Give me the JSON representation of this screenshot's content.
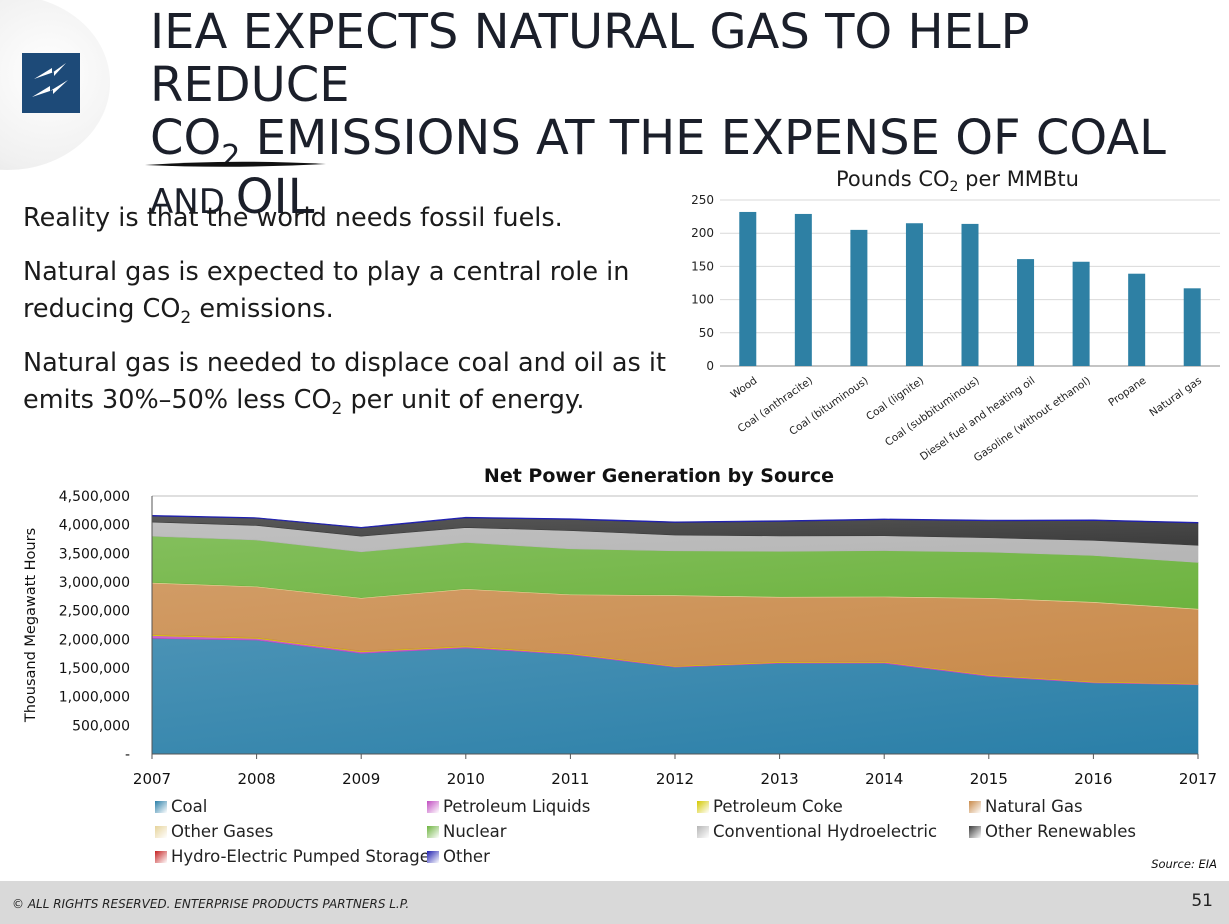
{
  "title": {
    "line1": "IEA EXPECTS NATURAL GAS TO HELP REDUCE",
    "line2_a": "CO",
    "line2_sub": "2",
    "line2_b": " EMISSIONS AT THE EXPENSE OF COAL",
    "line3_small": "AND ",
    "line3_big": "OIL"
  },
  "bullets": {
    "b1": "Reality is that the world needs fossil fuels.",
    "b2_a": "Natural gas is expected to play a central role in reducing CO",
    "b2_sub": "2",
    "b2_b": " emissions.",
    "b3_a": "Natural gas is needed to displace coal and oil as it emits 30%–50% less CO",
    "b3_sub": "2",
    "b3_b": " per unit of energy."
  },
  "footer": {
    "copyright": "© ALL RIGHTS RESERVED. ENTERPRISE PRODUCTS PARTNERS L.P.",
    "page": "51",
    "source": "Source:  EIA"
  },
  "chart_data": [
    {
      "type": "bar",
      "title_a": "Pounds CO",
      "title_sub": "2",
      "title_b": " per MMBtu",
      "categories": [
        "Wood",
        "Coal (anthracite)",
        "Coal (bituminous)",
        "Coal (lignite)",
        "Coal (subbituminous)",
        "Diesel fuel and heating oil",
        "Gasoline (without ethanol)",
        "Propane",
        "Natural gas"
      ],
      "values": [
        232,
        229,
        205,
        215,
        214,
        161,
        157,
        139,
        117
      ],
      "ylim": [
        0,
        250
      ],
      "yticks": [
        "0",
        "50",
        "100",
        "150",
        "200",
        "250"
      ],
      "color": "#2e80a4",
      "grid": true
    },
    {
      "type": "area",
      "stacked": true,
      "title": "Net Power Generation by Source",
      "ylabel": "Thousand Megawatt Hours",
      "x": [
        "2007",
        "2008",
        "2009",
        "2010",
        "2011",
        "2012",
        "2013",
        "2014",
        "2015",
        "2016",
        "2017"
      ],
      "ylim": [
        0,
        4500000
      ],
      "yticks": [
        "-",
        "500,000",
        "1,000,000",
        "1,500,000",
        "2,000,000",
        "2,500,000",
        "3,000,000",
        "3,500,000",
        "4,000,000",
        "4,500,000"
      ],
      "series": [
        {
          "name": "Coal",
          "color": "#2a7fa8",
          "values": [
            2016000,
            1986000,
            1756000,
            1847000,
            1733000,
            1514000,
            1581000,
            1582000,
            1352000,
            1239000,
            1206000
          ]
        },
        {
          "name": "Petroleum Liquids",
          "color": "#c04cc0",
          "values": [
            49000,
            31000,
            26000,
            23000,
            16000,
            13000,
            13000,
            18000,
            17000,
            14000,
            12000
          ]
        },
        {
          "name": "Petroleum Coke",
          "color": "#d4c800",
          "values": [
            17000,
            15000,
            13000,
            14000,
            14000,
            10000,
            14000,
            12000,
            11000,
            11000,
            9000
          ]
        },
        {
          "name": "Natural Gas",
          "color": "#c98a4a",
          "values": [
            897000,
            883000,
            921000,
            988000,
            1014000,
            1225000,
            1125000,
            1127000,
            1333000,
            1379000,
            1296000
          ]
        },
        {
          "name": "Other Gases",
          "color": "#e6d39a",
          "values": [
            13000,
            11000,
            11000,
            11000,
            11000,
            12000,
            13000,
            12000,
            13000,
            13000,
            13000
          ]
        },
        {
          "name": "Nuclear",
          "color": "#6db33f",
          "values": [
            806000,
            806000,
            799000,
            807000,
            790000,
            769000,
            789000,
            797000,
            797000,
            806000,
            805000
          ]
        },
        {
          "name": "Conventional Hydroelectric",
          "color": "#b5b5b5",
          "values": [
            247000,
            254000,
            273000,
            260000,
            319000,
            276000,
            269000,
            259000,
            249000,
            265000,
            300000
          ]
        },
        {
          "name": "Other Renewables",
          "color": "#3c3c3c",
          "values": [
            105000,
            126000,
            144000,
            167000,
            194000,
            218000,
            253000,
            280000,
            294000,
            344000,
            387000
          ]
        },
        {
          "name": "Hydro-Electric Pumped Storage",
          "color": "#c42020",
          "values": [
            -7000,
            -6000,
            -5000,
            -5000,
            -6000,
            -5000,
            -4000,
            -6000,
            -5000,
            -6000,
            -6000
          ]
        },
        {
          "name": "Other",
          "color": "#1f1fb0",
          "values": [
            13000,
            11000,
            12000,
            13000,
            14000,
            14000,
            13000,
            13000,
            14000,
            13000,
            13000
          ]
        }
      ]
    }
  ]
}
